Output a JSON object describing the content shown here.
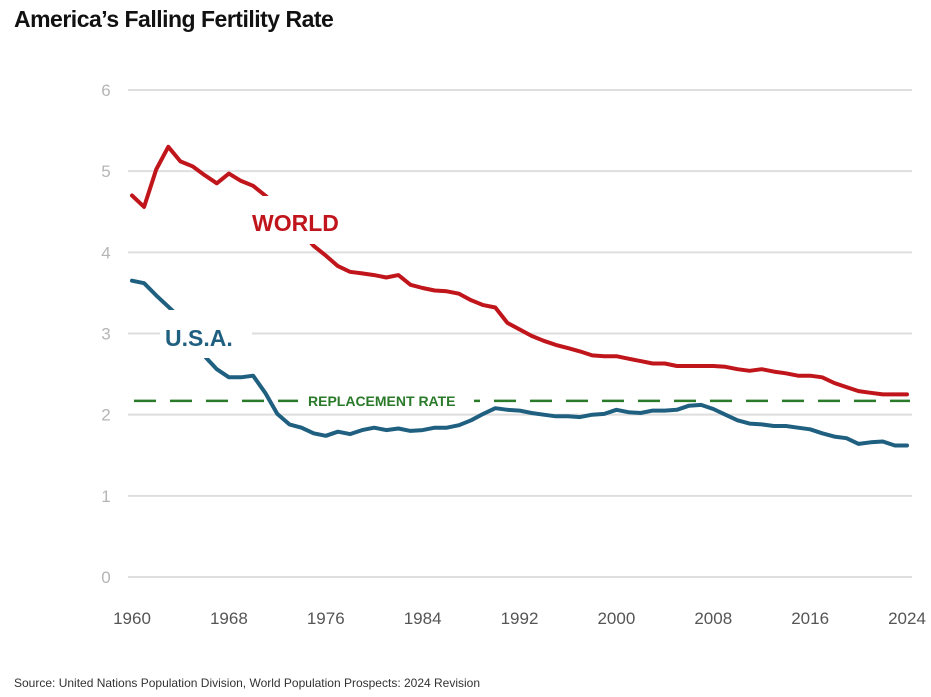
{
  "title": "America’s Falling Fertility Rate",
  "source": "Source: United Nations Population Division, World Population Prospects: 2024 Revision",
  "chart_data": {
    "type": "line",
    "title": "America’s Falling Fertility Rate",
    "xlabel": "",
    "ylabel": "",
    "xlim": [
      1960,
      2024
    ],
    "ylim": [
      0,
      6
    ],
    "x_ticks": [
      "1960",
      "1968",
      "1976",
      "1984",
      "1992",
      "2000",
      "2008",
      "2016",
      "2024"
    ],
    "y_ticks": [
      "0",
      "1",
      "2",
      "3",
      "4",
      "5",
      "6"
    ],
    "grid": true,
    "x": [
      1960,
      1961,
      1962,
      1963,
      1964,
      1965,
      1966,
      1967,
      1968,
      1969,
      1970,
      1971,
      1972,
      1973,
      1974,
      1975,
      1976,
      1977,
      1978,
      1979,
      1980,
      1981,
      1982,
      1983,
      1984,
      1985,
      1986,
      1987,
      1988,
      1989,
      1990,
      1991,
      1992,
      1993,
      1994,
      1995,
      1996,
      1997,
      1998,
      1999,
      2000,
      2001,
      2002,
      2003,
      2004,
      2005,
      2006,
      2007,
      2008,
      2009,
      2010,
      2011,
      2012,
      2013,
      2014,
      2015,
      2016,
      2017,
      2018,
      2019,
      2020,
      2021,
      2022,
      2023,
      2024
    ],
    "series": [
      {
        "name": "WORLD",
        "color": "#c0151b",
        "values": [
          4.7,
          4.56,
          5.02,
          5.3,
          5.12,
          5.06,
          4.95,
          4.85,
          4.97,
          4.88,
          4.82,
          4.7,
          4.57,
          4.4,
          4.25,
          4.08,
          3.96,
          3.83,
          3.76,
          3.74,
          3.72,
          3.69,
          3.72,
          3.6,
          3.56,
          3.53,
          3.52,
          3.49,
          3.41,
          3.35,
          3.32,
          3.13,
          3.05,
          2.97,
          2.91,
          2.86,
          2.82,
          2.78,
          2.73,
          2.72,
          2.72,
          2.69,
          2.66,
          2.63,
          2.63,
          2.6,
          2.6,
          2.6,
          2.6,
          2.59,
          2.56,
          2.54,
          2.56,
          2.53,
          2.51,
          2.48,
          2.48,
          2.46,
          2.39,
          2.34,
          2.29,
          2.27,
          2.25,
          2.25,
          2.25
        ]
      },
      {
        "name": "U.S.A.",
        "color": "#1f5f80",
        "values": [
          3.65,
          3.62,
          3.47,
          3.33,
          3.19,
          2.91,
          2.72,
          2.56,
          2.46,
          2.46,
          2.48,
          2.27,
          2.01,
          1.88,
          1.84,
          1.77,
          1.74,
          1.79,
          1.76,
          1.81,
          1.84,
          1.81,
          1.83,
          1.8,
          1.81,
          1.84,
          1.84,
          1.87,
          1.93,
          2.01,
          2.08,
          2.06,
          2.05,
          2.02,
          2.0,
          1.98,
          1.98,
          1.97,
          2.0,
          2.01,
          2.06,
          2.03,
          2.02,
          2.05,
          2.05,
          2.06,
          2.11,
          2.12,
          2.07,
          2.0,
          1.93,
          1.89,
          1.88,
          1.86,
          1.86,
          1.84,
          1.82,
          1.77,
          1.73,
          1.71,
          1.64,
          1.66,
          1.67,
          1.62,
          1.62
        ]
      }
    ],
    "reference_line": {
      "label": "REPLACEMENT RATE",
      "value": 2.17,
      "color": "#2a7a2a"
    }
  }
}
